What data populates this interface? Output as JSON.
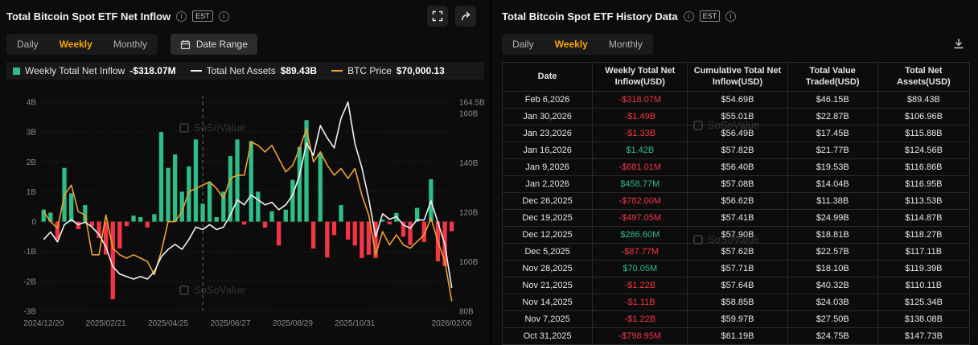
{
  "colors": {
    "accent_orange": "#f7a600",
    "green": "#2ebd85",
    "red": "#f23645",
    "net_assets_line": "#f2f2f2",
    "btc_line": "#f0a030",
    "grid": "#232325",
    "axis_text": "#8b8b8b"
  },
  "left_panel": {
    "title": "Total Bitcoin Spot ETF Net Inflow",
    "est_label": "EST",
    "tabs": [
      {
        "label": "Daily",
        "active": false
      },
      {
        "label": "Weekly",
        "active": true
      },
      {
        "label": "Monthly",
        "active": false
      }
    ],
    "date_range_label": "Date Range",
    "legend": [
      {
        "label": "Weekly Total Net Inflow",
        "value": "-$318.07M"
      },
      {
        "label": "Total Net Assets",
        "value": "$89.43B"
      },
      {
        "label": "BTC Price",
        "value": "$70,000.13"
      }
    ],
    "watermark": "SoSoValue"
  },
  "chart_data": {
    "type": "bar",
    "title": "Total Bitcoin Spot ETF Net Inflow (Weekly)",
    "x_labels": [
      "2024/12/20",
      "2025/02/21",
      "2025/04/25",
      "2025/06/27",
      "2025/08/29",
      "2025/10/31",
      "2026/02/06"
    ],
    "x_label_indices": [
      0,
      9,
      18,
      27,
      36,
      45,
      59
    ],
    "left_axis": {
      "ticks": [
        "4B",
        "3B",
        "2B",
        "1B",
        "0",
        "-1B",
        "-2B",
        "-3B"
      ],
      "tick_values": [
        4,
        3,
        2,
        1,
        0,
        -1,
        -2,
        -3
      ],
      "min": -3,
      "max": 4,
      "unit": "USD billions"
    },
    "right_axis": {
      "ticks": [
        "164.5B",
        "160B",
        "140B",
        "120B",
        "100B",
        "80B"
      ],
      "tick_values": [
        164.5,
        160,
        140,
        120,
        100,
        80
      ],
      "min": 80,
      "max": 164.5,
      "unit": "USD billions"
    },
    "btc_axis": {
      "min": 67,
      "max": 130
    },
    "dashed_line_index": 23,
    "legend_position": "top",
    "grid": true,
    "series": [
      {
        "name": "Weekly Total Net Inflow (USD B)",
        "type": "bar",
        "values": [
          0.4,
          0.3,
          -0.6,
          1.8,
          0.95,
          -0.25,
          0.55,
          -0.15,
          -0.55,
          -1.1,
          -2.6,
          -0.9,
          -0.15,
          0.2,
          0.15,
          -0.2,
          0.25,
          3.0,
          1.8,
          2.25,
          1.0,
          1.85,
          2.75,
          0.6,
          1.3,
          0.15,
          1.0,
          2.2,
          2.75,
          -0.1,
          2.7,
          1.0,
          -0.2,
          0.35,
          -0.8,
          0.4,
          1.4,
          2.5,
          3.4,
          -0.9,
          2.3,
          -1.2,
          -0.45,
          0.55,
          -0.6,
          -0.8,
          -1.22,
          -1.11,
          -1.22,
          0.07,
          -0.09,
          0.29,
          -0.5,
          -0.78,
          0.46,
          -0.68,
          1.42,
          -1.33,
          -1.49,
          -0.32
        ]
      },
      {
        "name": "Total Net Assets (USD B)",
        "type": "line",
        "axis": "right",
        "values": [
          109,
          112,
          108,
          115,
          117,
          115,
          116,
          114,
          111,
          106,
          98,
          95,
          94,
          93,
          94,
          93,
          96,
          102,
          105,
          107,
          105,
          109,
          114,
          113,
          115,
          113,
          114,
          119,
          125,
          123,
          127,
          125,
          123,
          124,
          121,
          123,
          127,
          135,
          148,
          143,
          155,
          150,
          146,
          158,
          164.5,
          147.73,
          138.08,
          125.34,
          110.11,
          119.39,
          117.11,
          118.27,
          114.87,
          113.53,
          116.95,
          116.86,
          124.56,
          115.88,
          106.96,
          89.43
        ]
      },
      {
        "name": "BTC Price (USD thousands)",
        "type": "line",
        "axis": "btc",
        "values": [
          97,
          94,
          92,
          102,
          105,
          97,
          96,
          84,
          84,
          96,
          86,
          84,
          83,
          84,
          83,
          82,
          78,
          85,
          94,
          94,
          97,
          103,
          104,
          105,
          106,
          104,
          101,
          107,
          108,
          108,
          118,
          117,
          115,
          117,
          113,
          109,
          111,
          116,
          122,
          112,
          115,
          111,
          108,
          110,
          107,
          110,
          102,
          96,
          84,
          91,
          87,
          90,
          87,
          86,
          88,
          90,
          95,
          88,
          82,
          70
        ]
      }
    ]
  },
  "right_panel": {
    "title": "Total Bitcoin Spot ETF History Data",
    "est_label": "EST",
    "tabs": [
      {
        "label": "Daily",
        "active": false
      },
      {
        "label": "Weekly",
        "active": true
      },
      {
        "label": "Monthly",
        "active": false
      }
    ],
    "watermark": "SoSoValue",
    "table": {
      "headers": [
        "Date",
        "Weekly Total Net Inflow(USD)",
        "Cumulative Total Net Inflow(USD)",
        "Total Value Traded(USD)",
        "Total Net Assets(USD)"
      ],
      "rows": [
        {
          "date": "Feb 6,2026",
          "inflow": "-$318.07M",
          "inflow_color": "red",
          "cumulative": "$54.69B",
          "traded": "$46.15B",
          "assets": "$89.43B"
        },
        {
          "date": "Jan 30,2026",
          "inflow": "-$1.49B",
          "inflow_color": "red",
          "cumulative": "$55.01B",
          "traded": "$22.87B",
          "assets": "$106.96B"
        },
        {
          "date": "Jan 23,2026",
          "inflow": "-$1.33B",
          "inflow_color": "red",
          "cumulative": "$56.49B",
          "traded": "$17.45B",
          "assets": "$115.88B"
        },
        {
          "date": "Jan 16,2026",
          "inflow": "$1.42B",
          "inflow_color": "green",
          "cumulative": "$57.82B",
          "traded": "$21.77B",
          "assets": "$124.56B"
        },
        {
          "date": "Jan 9,2026",
          "inflow": "-$681.01M",
          "inflow_color": "red",
          "cumulative": "$56.40B",
          "traded": "$19.53B",
          "assets": "$116.86B"
        },
        {
          "date": "Jan 2,2026",
          "inflow": "$458.77M",
          "inflow_color": "green",
          "cumulative": "$57.08B",
          "traded": "$14.04B",
          "assets": "$116.95B"
        },
        {
          "date": "Dec 26,2025",
          "inflow": "-$782.00M",
          "inflow_color": "red",
          "cumulative": "$56.62B",
          "traded": "$11.38B",
          "assets": "$113.53B"
        },
        {
          "date": "Dec 19,2025",
          "inflow": "-$497.05M",
          "inflow_color": "red",
          "cumulative": "$57.41B",
          "traded": "$24.99B",
          "assets": "$114.87B"
        },
        {
          "date": "Dec 12,2025",
          "inflow": "$286.60M",
          "inflow_color": "green",
          "cumulative": "$57.90B",
          "traded": "$18.81B",
          "assets": "$118.27B"
        },
        {
          "date": "Dec 5,2025",
          "inflow": "-$87.77M",
          "inflow_color": "red",
          "cumulative": "$57.62B",
          "traded": "$22.57B",
          "assets": "$117.11B"
        },
        {
          "date": "Nov 28,2025",
          "inflow": "$70.05M",
          "inflow_color": "green",
          "cumulative": "$57.71B",
          "traded": "$18.10B",
          "assets": "$119.39B"
        },
        {
          "date": "Nov 21,2025",
          "inflow": "-$1.22B",
          "inflow_color": "red",
          "cumulative": "$57.64B",
          "traded": "$40.32B",
          "assets": "$110.11B"
        },
        {
          "date": "Nov 14,2025",
          "inflow": "-$1.11B",
          "inflow_color": "red",
          "cumulative": "$58.85B",
          "traded": "$24.03B",
          "assets": "$125.34B"
        },
        {
          "date": "Nov 7,2025",
          "inflow": "-$1.22B",
          "inflow_color": "red",
          "cumulative": "$59.97B",
          "traded": "$27.50B",
          "assets": "$138.08B"
        },
        {
          "date": "Oct 31,2025",
          "inflow": "-$798.95M",
          "inflow_color": "red",
          "cumulative": "$61.19B",
          "traded": "$24.75B",
          "assets": "$147.73B"
        }
      ]
    }
  }
}
